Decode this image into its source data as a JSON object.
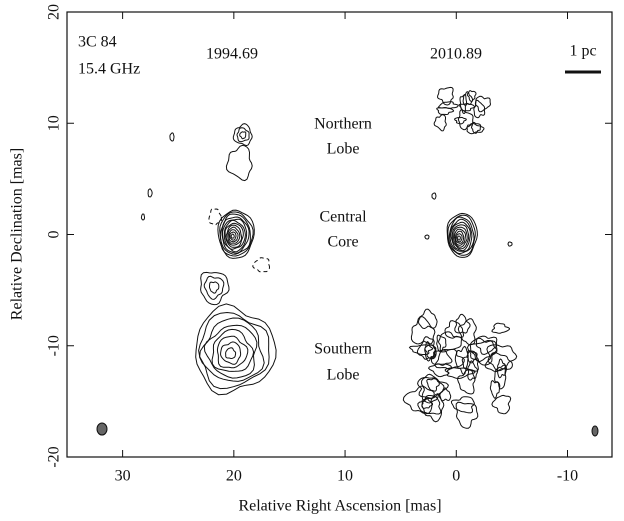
{
  "chart_data": {
    "type": "contour",
    "xlabel": "Relative Right Ascension [mas]",
    "ylabel": "Relative Declination [mas]",
    "xlim": [
      35,
      -14
    ],
    "ylim": [
      -20,
      20
    ],
    "xticks": [
      30,
      20,
      10,
      0,
      -10
    ],
    "yticks": [
      -20,
      -10,
      0,
      10,
      20
    ],
    "annotations": [
      "3C 84",
      "15.4 GHz",
      "1994.69",
      "2010.89",
      "1 pc",
      "Northern",
      "Lobe",
      "Central",
      "Core",
      "Southern",
      "Lobe"
    ]
  }
}
